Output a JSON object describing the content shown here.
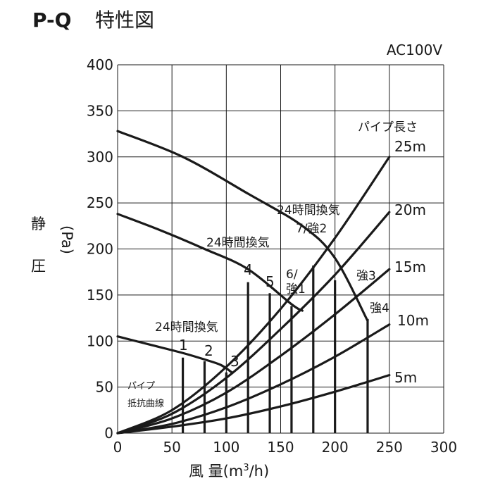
{
  "chart_data": {
    "type": "line",
    "title": "P-Q 特性図",
    "title_bold": "P-Q",
    "title_rest": "特性図",
    "voltage": "AC100V",
    "xlabel": "風 量(m³/h)",
    "ylabel": "静圧(Pa)",
    "xlim": [
      0,
      300
    ],
    "ylim": [
      0,
      400
    ],
    "x_ticks": [
      0,
      50,
      100,
      150,
      200,
      250,
      300
    ],
    "y_ticks": [
      0,
      50,
      100,
      150,
      200,
      250,
      300,
      350,
      400
    ],
    "grid": true,
    "fan_curves": [
      {
        "points": [
          [
            0,
            105
          ],
          [
            30,
            96
          ],
          [
            60,
            87
          ],
          [
            80,
            80
          ],
          [
            95,
            74
          ],
          [
            105,
            66
          ]
        ]
      },
      {
        "points": [
          [
            0,
            238
          ],
          [
            40,
            220
          ],
          [
            80,
            200
          ],
          [
            120,
            178
          ],
          [
            160,
            140
          ],
          [
            170,
            133
          ]
        ]
      },
      {
        "points": [
          [
            0,
            328
          ],
          [
            60,
            300
          ],
          [
            120,
            260
          ],
          [
            170,
            225
          ],
          [
            200,
            190
          ],
          [
            230,
            122
          ]
        ]
      }
    ],
    "pipe_resistance_curves": [
      {
        "name": "5m",
        "points": [
          [
            0,
            0
          ],
          [
            50,
            7
          ],
          [
            100,
            16
          ],
          [
            150,
            29
          ],
          [
            200,
            45
          ],
          [
            250,
            63
          ]
        ]
      },
      {
        "name": "10m",
        "points": [
          [
            0,
            0
          ],
          [
            50,
            10
          ],
          [
            100,
            28
          ],
          [
            150,
            53
          ],
          [
            200,
            83
          ],
          [
            250,
            118
          ]
        ]
      },
      {
        "name": "15m",
        "points": [
          [
            0,
            0
          ],
          [
            50,
            16
          ],
          [
            100,
            44
          ],
          [
            150,
            84
          ],
          [
            200,
            129
          ],
          [
            250,
            178
          ]
        ]
      },
      {
        "name": "20m",
        "points": [
          [
            0,
            0
          ],
          [
            50,
            21
          ],
          [
            100,
            60
          ],
          [
            150,
            113
          ],
          [
            200,
            172
          ],
          [
            250,
            240
          ]
        ]
      },
      {
        "name": "25m",
        "points": [
          [
            0,
            0
          ],
          [
            50,
            25
          ],
          [
            100,
            72
          ],
          [
            150,
            135
          ],
          [
            200,
            212
          ],
          [
            250,
            300
          ]
        ]
      }
    ],
    "operating_points": [
      {
        "label": "1",
        "x": 60,
        "y": 82
      },
      {
        "label": "2",
        "x": 80,
        "y": 78
      },
      {
        "label": "3",
        "x": 100,
        "y": 66
      },
      {
        "label": "4",
        "x": 120,
        "y": 164
      },
      {
        "label": "5",
        "x": 140,
        "y": 152
      },
      {
        "label": "6/強1",
        "x": 160,
        "y": 138
      },
      {
        "label": "7/強2",
        "x": 180,
        "y": 182
      },
      {
        "label": "強3",
        "x": 200,
        "y": 166
      },
      {
        "label": "強4",
        "x": 230,
        "y": 124
      }
    ],
    "annotations": {
      "vent_low": "24時間換気",
      "vent_mid": "24時間換気",
      "vent_high": "24時間換気",
      "op1": "1",
      "op2": "2",
      "op3": "3",
      "op4": "4",
      "op5": "5",
      "op6a": "6/",
      "op6b": "強1",
      "op7": "7/強2",
      "op8": "強3",
      "op9": "強4",
      "pipe_length_header": "パイプ長さ",
      "pipe_25": "25m",
      "pipe_20": "20m",
      "pipe_15": "15m",
      "pipe_10": "10m",
      "pipe_5": "5m",
      "pipe_curve_a": "パイプ",
      "pipe_curve_b": "抵抗曲線"
    },
    "ylabel_chars": [
      "静",
      "圧"
    ],
    "ylabel_unit": "(Pa)",
    "xlabel_main": "風 量(m",
    "xlabel_sup": "3",
    "xlabel_tail": "/h)"
  }
}
